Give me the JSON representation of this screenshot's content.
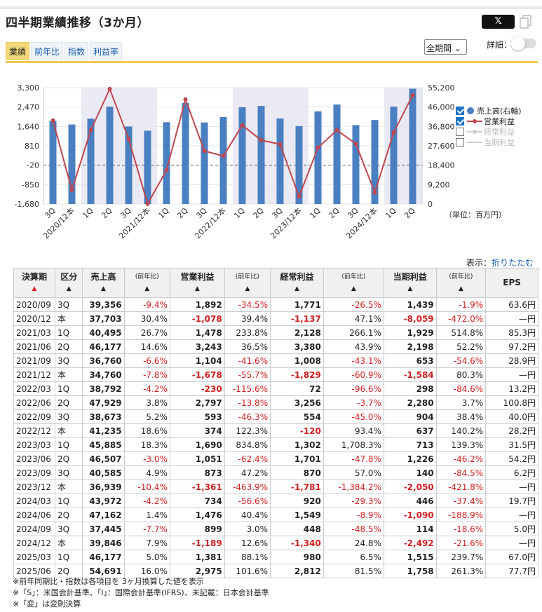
{
  "title": "四半期業績推移（3か月）",
  "share_x": "𝕏",
  "tabs": [
    "業績",
    "前年比",
    "指数",
    "利益率"
  ],
  "period_select": "全期間",
  "detail_label": "詳細：",
  "legend": [
    {
      "label": "売上高(右軸)",
      "checked": true
    },
    {
      "label": "営業利益",
      "checked": true
    },
    {
      "label": "経常利益",
      "checked": false
    },
    {
      "label": "当期利益",
      "checked": false
    }
  ],
  "unit_label": "（単位：百万円）",
  "fold_prefix": "表示：",
  "fold_link": "折りたたむ",
  "colors": {
    "bar": "#4a7fc1",
    "line": "#c0474e",
    "accent": "#f0c94a",
    "negative": "#d21f1f"
  },
  "chart_data": {
    "type": "bar+line",
    "categories": [
      "3Q",
      "2020/12本",
      "1Q",
      "2Q",
      "3Q",
      "2021/12本",
      "1Q",
      "2Q",
      "3Q",
      "2022/12本",
      "1Q",
      "2Q",
      "3Q",
      "2023/12本",
      "1Q",
      "2Q",
      "3Q",
      "2024/12本",
      "1Q",
      "2Q"
    ],
    "left_ticks": [
      "3,300",
      "2,470",
      "1,640",
      "810",
      "-20",
      "-850",
      "-1,680"
    ],
    "right_ticks": [
      "55,200",
      "46,000",
      "36,800",
      "27,600",
      "18,400",
      "9,200",
      "0"
    ],
    "ylim_left": [
      -1680,
      3300
    ],
    "ylim_right": [
      0,
      55200
    ],
    "series": [
      {
        "name": "売上高(右軸)",
        "type": "bar",
        "axis": "right",
        "values": [
          39356,
          37703,
          40495,
          46177,
          36760,
          34760,
          38792,
          47929,
          38673,
          41235,
          45885,
          46507,
          40585,
          36939,
          43972,
          47162,
          37445,
          39846,
          46177,
          54691
        ]
      },
      {
        "name": "営業利益",
        "type": "line",
        "axis": "left",
        "values": [
          1892,
          -1078,
          1478,
          3243,
          1104,
          -1678,
          -230,
          2797,
          593,
          374,
          1690,
          1051,
          873,
          -1361,
          734,
          1476,
          899,
          -1189,
          1381,
          2975
        ]
      }
    ]
  },
  "table": {
    "headers": [
      {
        "main": "決算期",
        "arrow": "▲",
        "red": true
      },
      {
        "main": "区分",
        "arrow": "▲"
      },
      {
        "main": "売上高",
        "arrow": "▲"
      },
      {
        "main": "(前年比)",
        "arrow": "▲",
        "small": true
      },
      {
        "main": "営業利益",
        "arrow": "▲"
      },
      {
        "main": "(前年比)",
        "arrow": "▲",
        "small": true
      },
      {
        "main": "経常利益",
        "arrow": "▲"
      },
      {
        "main": "(前年比)",
        "arrow": "▲",
        "small": true
      },
      {
        "main": "当期利益",
        "arrow": "▲"
      },
      {
        "main": "(前年比)",
        "arrow": "▲",
        "small": true
      },
      {
        "main": "EPS",
        "arrow": ""
      }
    ],
    "rows": [
      [
        "2020/09",
        "3Q",
        "39,356",
        "-9.4%",
        "1,892",
        "-34.5%",
        "1,771",
        "-26.5%",
        "1,439",
        "-1.9%",
        "63.6円"
      ],
      [
        "2020/12",
        "本",
        "37,703",
        "30.4%",
        "-1,078",
        "39.4%",
        "-1,137",
        "47.1%",
        "-8,059",
        "-472.0%",
        "—円"
      ],
      [
        "2021/03",
        "1Q",
        "40,495",
        "26.7%",
        "1,478",
        "233.8%",
        "2,128",
        "266.1%",
        "1,929",
        "514.8%",
        "85.3円"
      ],
      [
        "2021/06",
        "2Q",
        "46,177",
        "14.6%",
        "3,243",
        "36.5%",
        "3,380",
        "43.9%",
        "2,198",
        "52.2%",
        "97.2円"
      ],
      [
        "2021/09",
        "3Q",
        "36,760",
        "-6.6%",
        "1,104",
        "-41.6%",
        "1,008",
        "-43.1%",
        "653",
        "-54.6%",
        "28.9円"
      ],
      [
        "2021/12",
        "本",
        "34,760",
        "-7.8%",
        "-1,678",
        "-55.7%",
        "-1,829",
        "-60.9%",
        "-1,584",
        "80.3%",
        "—円"
      ],
      [
        "2022/03",
        "1Q",
        "38,792",
        "-4.2%",
        "-230",
        "-115.6%",
        "72",
        "-96.6%",
        "298",
        "-84.6%",
        "13.2円"
      ],
      [
        "2022/06",
        "2Q",
        "47,929",
        "3.8%",
        "2,797",
        "-13.8%",
        "3,256",
        "-3.7%",
        "2,280",
        "3.7%",
        "100.8円"
      ],
      [
        "2022/09",
        "3Q",
        "38,673",
        "5.2%",
        "593",
        "-46.3%",
        "554",
        "-45.0%",
        "904",
        "38.4%",
        "40.0円"
      ],
      [
        "2022/12",
        "本",
        "41,235",
        "18.6%",
        "374",
        "122.3%",
        "-120",
        "93.4%",
        "637",
        "140.2%",
        "28.2円"
      ],
      [
        "2023/03",
        "1Q",
        "45,885",
        "18.3%",
        "1,690",
        "834.8%",
        "1,302",
        "1,708.3%",
        "713",
        "139.3%",
        "31.5円"
      ],
      [
        "2023/06",
        "2Q",
        "46,507",
        "-3.0%",
        "1,051",
        "-62.4%",
        "1,701",
        "-47.8%",
        "1,226",
        "-46.2%",
        "54.2円"
      ],
      [
        "2023/09",
        "3Q",
        "40,585",
        "4.9%",
        "873",
        "47.2%",
        "870",
        "57.0%",
        "140",
        "-84.5%",
        "6.2円"
      ],
      [
        "2023/12",
        "本",
        "36,939",
        "-10.4%",
        "-1,361",
        "-463.9%",
        "-1,781",
        "-1,384.2%",
        "-2,050",
        "-421.8%",
        "—円"
      ],
      [
        "2024/03",
        "1Q",
        "43,972",
        "-4.2%",
        "734",
        "-56.6%",
        "920",
        "-29.3%",
        "446",
        "-37.4%",
        "19.7円"
      ],
      [
        "2024/06",
        "2Q",
        "47,162",
        "1.4%",
        "1,476",
        "40.4%",
        "1,549",
        "-8.9%",
        "-1,090",
        "-188.9%",
        "—円"
      ],
      [
        "2024/09",
        "3Q",
        "37,445",
        "-7.7%",
        "899",
        "3.0%",
        "448",
        "-48.5%",
        "114",
        "-18.6%",
        "5.0円"
      ],
      [
        "2024/12",
        "本",
        "39,846",
        "7.9%",
        "-1,189",
        "12.6%",
        "-1,340",
        "24.8%",
        "-2,492",
        "-21.6%",
        "—円"
      ],
      [
        "2025/03",
        "1Q",
        "46,177",
        "5.0%",
        "1,381",
        "88.1%",
        "980",
        "6.5%",
        "1,515",
        "239.7%",
        "67.0円"
      ],
      [
        "2025/06",
        "2Q",
        "54,691",
        "16.0%",
        "2,975",
        "101.6%",
        "2,812",
        "81.5%",
        "1,758",
        "261.3%",
        "77.7円"
      ]
    ]
  },
  "notes": [
    "※前年同期比・指数は各項目を 3ヶ月換算した値を表示",
    "※「S」：米国会計基準、「I」：国際会計基準(IFRS)、未記載：日本会計基準",
    "※「変」は変則決算"
  ]
}
